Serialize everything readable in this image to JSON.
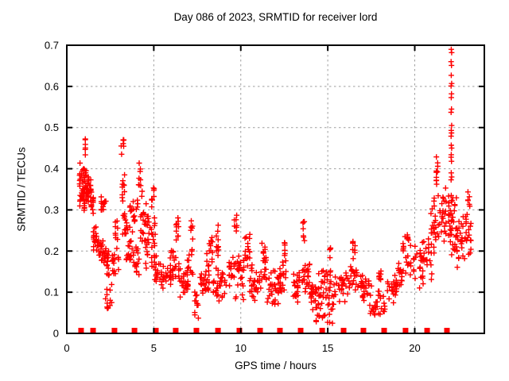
{
  "chart_data": {
    "type": "scatter",
    "title": "Day 086 of 2023, SRMTID for receiver lord",
    "xlabel": "GPS time / hours",
    "ylabel": "SRMTID / TECUs",
    "xlim": [
      0,
      24
    ],
    "ylim": [
      0,
      0.7
    ],
    "xticks": [
      0,
      5,
      10,
      15,
      20
    ],
    "xticklabels": [
      "0",
      "5",
      "10",
      "15",
      "20"
    ],
    "yticks": [
      0,
      0.1,
      0.2,
      0.3,
      0.4,
      0.5,
      0.6,
      0.7
    ],
    "yticklabels": [
      "0",
      "0.1",
      "0.2",
      "0.3",
      "0.4",
      "0.5",
      "0.6",
      "0.7"
    ],
    "grid": true,
    "legend": "none",
    "colors": {
      "marker": "#ff0000",
      "grid": "#9e9e9e",
      "border": "#000000",
      "background": "#ffffff",
      "text": "#000000"
    },
    "series": [
      {
        "name": "srmtid-points",
        "marker": "plus",
        "note": "dense cloud estimated as [hourStart,hourEnd,valMin,valMax,count] envelopes read from the pixels",
        "clusters": [
          [
            0.72,
            0.95,
            0.3,
            0.42,
            24
          ],
          [
            0.95,
            1.15,
            0.29,
            0.425,
            30
          ],
          [
            1.0,
            1.1,
            0.43,
            0.48,
            6
          ],
          [
            1.1,
            1.4,
            0.3,
            0.4,
            28
          ],
          [
            1.35,
            1.55,
            0.285,
            0.345,
            12
          ],
          [
            1.5,
            1.8,
            0.19,
            0.27,
            18
          ],
          [
            1.8,
            2.1,
            0.17,
            0.25,
            16
          ],
          [
            1.95,
            2.3,
            0.285,
            0.345,
            13
          ],
          [
            2.1,
            2.45,
            0.12,
            0.22,
            22
          ],
          [
            2.2,
            2.6,
            0.05,
            0.12,
            12
          ],
          [
            2.6,
            3.0,
            0.13,
            0.22,
            16
          ],
          [
            2.75,
            2.95,
            0.22,
            0.3,
            8
          ],
          [
            3.1,
            3.3,
            0.42,
            0.48,
            7
          ],
          [
            3.15,
            3.35,
            0.3,
            0.41,
            10
          ],
          [
            3.2,
            3.5,
            0.22,
            0.3,
            14
          ],
          [
            3.4,
            3.8,
            0.15,
            0.27,
            18
          ],
          [
            3.6,
            4.1,
            0.25,
            0.33,
            16
          ],
          [
            3.8,
            4.2,
            0.13,
            0.22,
            16
          ],
          [
            4.1,
            4.35,
            0.32,
            0.42,
            10
          ],
          [
            4.2,
            4.7,
            0.18,
            0.32,
            22
          ],
          [
            4.5,
            5.1,
            0.13,
            0.3,
            28
          ],
          [
            4.85,
            5.05,
            0.3,
            0.36,
            8
          ],
          [
            5.0,
            5.4,
            0.1,
            0.2,
            18
          ],
          [
            5.4,
            6.0,
            0.09,
            0.18,
            26
          ],
          [
            5.9,
            6.3,
            0.12,
            0.22,
            18
          ],
          [
            6.25,
            6.45,
            0.2,
            0.3,
            10
          ],
          [
            6.4,
            7.0,
            0.08,
            0.18,
            26
          ],
          [
            6.9,
            7.3,
            0.12,
            0.22,
            14
          ],
          [
            7.1,
            7.25,
            0.22,
            0.285,
            6
          ],
          [
            7.3,
            7.6,
            0.03,
            0.12,
            11
          ],
          [
            7.6,
            8.2,
            0.08,
            0.17,
            26
          ],
          [
            8.0,
            8.4,
            0.15,
            0.25,
            14
          ],
          [
            8.55,
            8.75,
            0.18,
            0.27,
            10
          ],
          [
            8.4,
            9.2,
            0.07,
            0.17,
            30
          ],
          [
            9.3,
            9.5,
            0.1,
            0.2,
            12
          ],
          [
            9.6,
            9.8,
            0.22,
            0.3,
            8
          ],
          [
            9.5,
            10.2,
            0.08,
            0.2,
            30
          ],
          [
            10.2,
            10.55,
            0.14,
            0.25,
            16
          ],
          [
            10.5,
            11.1,
            0.07,
            0.17,
            28
          ],
          [
            11.1,
            11.5,
            0.1,
            0.22,
            22
          ],
          [
            11.5,
            12.2,
            0.06,
            0.16,
            30
          ],
          [
            12.2,
            12.7,
            0.08,
            0.18,
            22
          ],
          [
            12.5,
            12.65,
            0.17,
            0.23,
            6
          ],
          [
            13.0,
            13.4,
            0.07,
            0.16,
            22
          ],
          [
            13.55,
            13.7,
            0.22,
            0.285,
            7
          ],
          [
            13.5,
            14.0,
            0.08,
            0.18,
            22
          ],
          [
            14.0,
            14.6,
            0.05,
            0.15,
            26
          ],
          [
            14.3,
            15.3,
            0.02,
            0.1,
            26
          ],
          [
            14.6,
            15.2,
            0.08,
            0.17,
            22
          ],
          [
            15.1,
            15.25,
            0.17,
            0.22,
            6
          ],
          [
            15.3,
            16.0,
            0.06,
            0.16,
            26
          ],
          [
            16.0,
            16.7,
            0.08,
            0.18,
            26
          ],
          [
            16.4,
            16.6,
            0.18,
            0.245,
            8
          ],
          [
            16.7,
            17.4,
            0.07,
            0.16,
            26
          ],
          [
            17.4,
            18.3,
            0.03,
            0.12,
            30
          ],
          [
            17.9,
            18.1,
            0.12,
            0.16,
            8
          ],
          [
            18.4,
            19.0,
            0.07,
            0.16,
            22
          ],
          [
            18.9,
            19.3,
            0.1,
            0.2,
            18
          ],
          [
            19.3,
            19.8,
            0.12,
            0.25,
            18
          ],
          [
            19.55,
            19.7,
            0.22,
            0.25,
            5
          ],
          [
            19.9,
            20.5,
            0.1,
            0.22,
            22
          ],
          [
            20.4,
            21.0,
            0.13,
            0.26,
            22
          ],
          [
            20.9,
            21.5,
            0.18,
            0.35,
            26
          ],
          [
            21.2,
            21.35,
            0.345,
            0.43,
            10
          ],
          [
            21.5,
            22.0,
            0.2,
            0.38,
            26
          ],
          [
            22.0,
            22.5,
            0.17,
            0.35,
            30
          ],
          [
            22.4,
            23.0,
            0.15,
            0.33,
            26
          ],
          [
            22.9,
            23.25,
            0.18,
            0.3,
            14
          ],
          [
            23.0,
            23.2,
            0.3,
            0.355,
            6
          ]
        ],
        "points": [
          [
            22.1,
            0.69
          ],
          [
            22.12,
            0.682
          ],
          [
            22.09,
            0.66
          ],
          [
            22.11,
            0.651
          ],
          [
            22.1,
            0.627
          ],
          [
            22.12,
            0.607
          ],
          [
            22.09,
            0.601
          ],
          [
            22.11,
            0.582
          ],
          [
            22.1,
            0.573
          ],
          [
            22.11,
            0.545
          ],
          [
            22.09,
            0.537
          ],
          [
            22.12,
            0.505
          ],
          [
            22.1,
            0.493
          ],
          [
            22.11,
            0.487
          ],
          [
            22.09,
            0.479
          ],
          [
            22.1,
            0.457
          ],
          [
            22.12,
            0.45
          ],
          [
            22.1,
            0.434
          ],
          [
            22.09,
            0.428
          ],
          [
            22.11,
            0.418
          ],
          [
            22.1,
            0.39
          ],
          [
            22.12,
            0.38
          ],
          [
            22.09,
            0.373
          ],
          [
            22.1,
            0.335
          ],
          [
            22.11,
            0.32
          ],
          [
            22.1,
            0.272
          ],
          [
            22.09,
            0.25
          ]
        ]
      },
      {
        "name": "baseline-markers",
        "marker": "square",
        "y": 0,
        "hours": [
          0.82,
          1.51,
          2.74,
          3.89,
          5.12,
          6.26,
          7.45,
          8.69,
          9.92,
          11.11,
          12.25,
          13.44,
          14.68,
          15.91,
          17.05,
          18.24,
          19.47,
          20.71,
          21.85
        ]
      }
    ]
  }
}
